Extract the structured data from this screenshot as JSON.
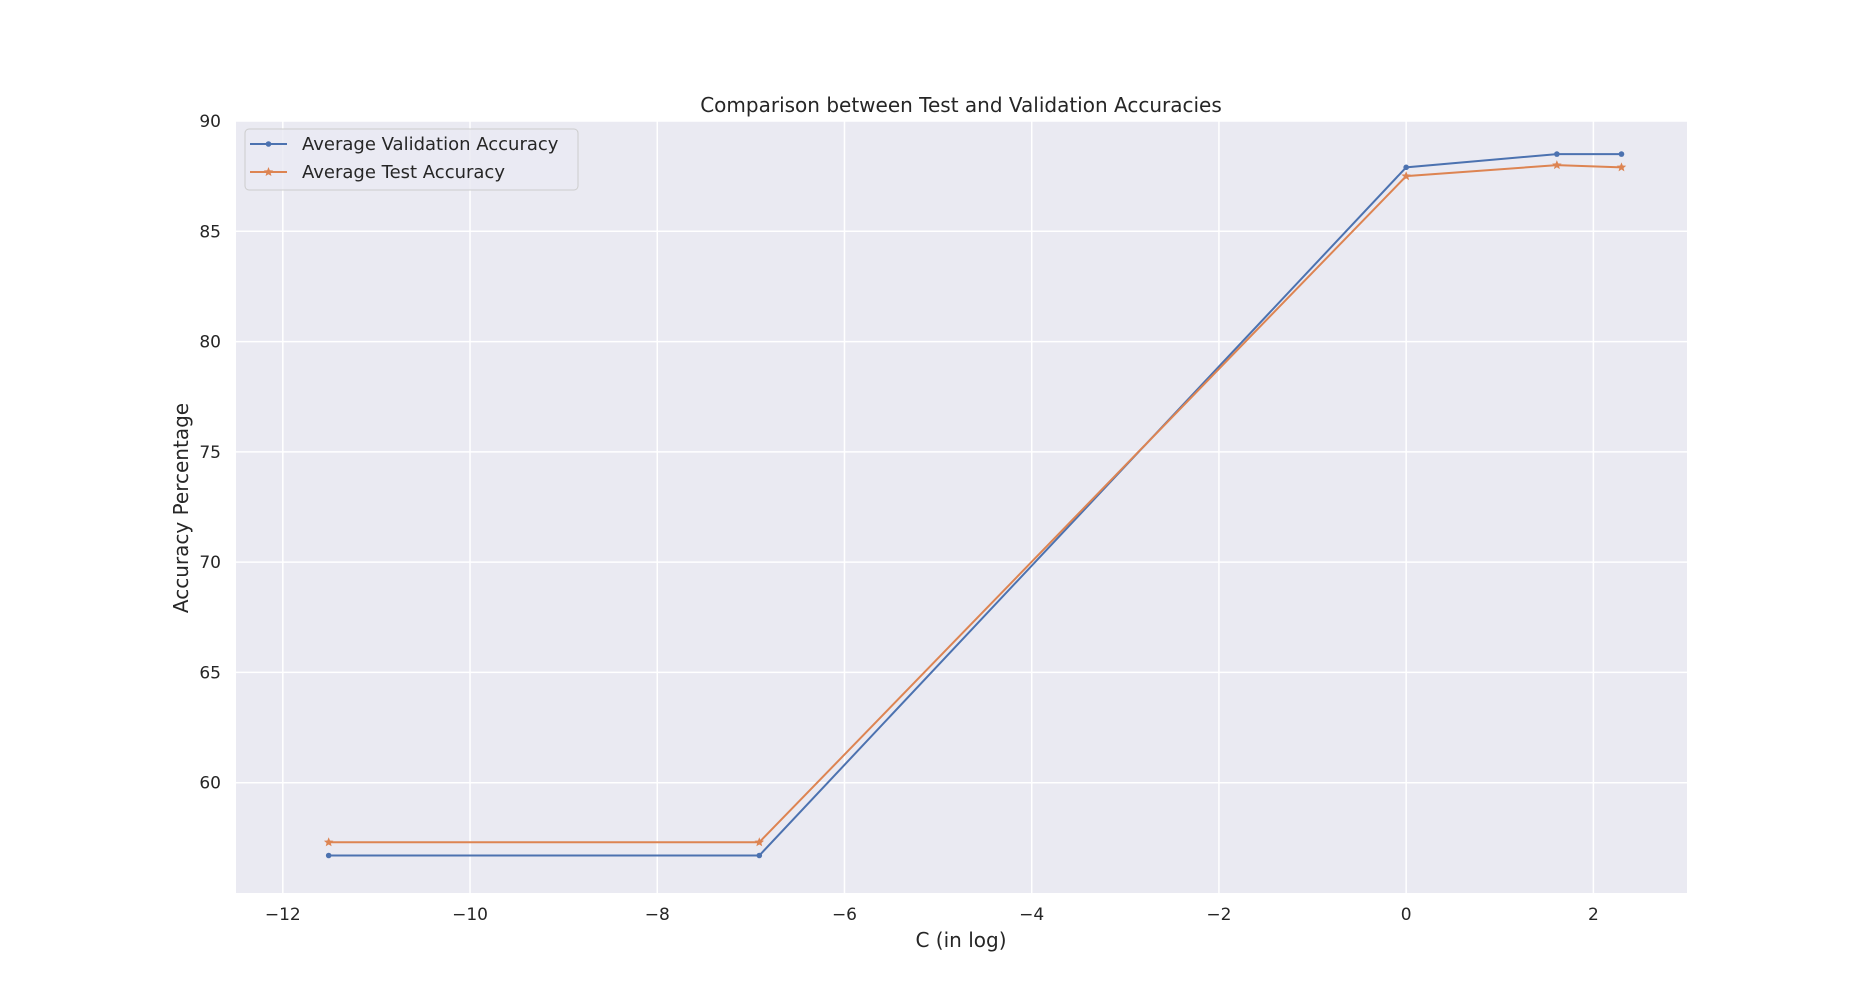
{
  "chart_data": {
    "type": "line",
    "title": "Comparison between Test and Validation Accuracies",
    "xlabel": "C (in log)",
    "ylabel": "Accuracy Percentage",
    "xlim": [
      -12.5,
      3
    ],
    "ylim": [
      55,
      90
    ],
    "xticks": [
      -12,
      -10,
      -8,
      -6,
      -4,
      -2,
      0,
      2
    ],
    "xtick_labels": [
      "−12",
      "−10",
      "−8",
      "−6",
      "−4",
      "−2",
      "0",
      "2"
    ],
    "yticks": [
      60,
      65,
      70,
      75,
      80,
      85,
      90
    ],
    "ytick_labels": [
      "60",
      "65",
      "70",
      "75",
      "80",
      "85",
      "90"
    ],
    "grid": true,
    "legend_position": "top-left",
    "series": [
      {
        "name": "Average Validation Accuracy",
        "color": "#4C72B0",
        "marker": "dot",
        "x": [
          -11.51,
          -6.91,
          0,
          1.61,
          2.3
        ],
        "y": [
          56.7,
          56.7,
          87.9,
          88.5,
          88.5
        ]
      },
      {
        "name": "Average Test Accuracy",
        "color": "#DD8452",
        "marker": "star",
        "x": [
          -11.51,
          -6.91,
          0,
          1.61,
          2.3
        ],
        "y": [
          57.3,
          57.3,
          87.5,
          88.0,
          87.9
        ]
      }
    ]
  }
}
